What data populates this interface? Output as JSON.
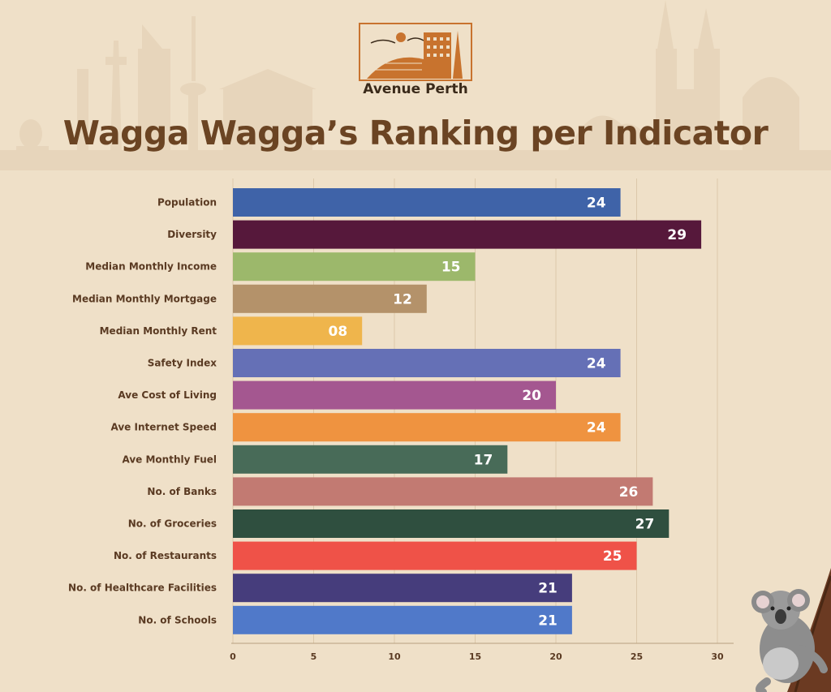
{
  "brand": {
    "name": "Avenue Perth"
  },
  "chart_data": {
    "type": "bar",
    "orientation": "horizontal",
    "title": "Wagga Wagga’s Ranking per Indicator",
    "xlabel": "",
    "ylabel": "",
    "xlim": [
      0,
      30
    ],
    "xticks": [
      0,
      5,
      10,
      15,
      20,
      25,
      30
    ],
    "grid": true,
    "categories": [
      "Population",
      "Diversity",
      "Median Monthly Income",
      "Median Monthly Mortgage",
      "Median Monthly Rent",
      "Safety Index",
      "Ave Cost of Living",
      "Ave Internet Speed",
      "Ave Monthly Fuel",
      "No. of Banks",
      "No. of Groceries",
      "No. of Restaurants",
      "No. of Healthcare Facilities",
      "No. of Schools"
    ],
    "values": [
      24,
      29,
      15,
      12,
      8,
      24,
      20,
      24,
      17,
      26,
      27,
      25,
      21,
      21
    ],
    "value_labels": [
      "24",
      "29",
      "15",
      "12",
      "08",
      "24",
      "20",
      "24",
      "17",
      "26",
      "27",
      "25",
      "21",
      "21"
    ],
    "colors": [
      "#3f63a8",
      "#56183b",
      "#9cb86b",
      "#b4926a",
      "#efb54c",
      "#6570b6",
      "#a45790",
      "#ef9340",
      "#486b58",
      "#c27a72",
      "#2f4f3f",
      "#ef5248",
      "#463d7c",
      "#5079c9"
    ]
  }
}
